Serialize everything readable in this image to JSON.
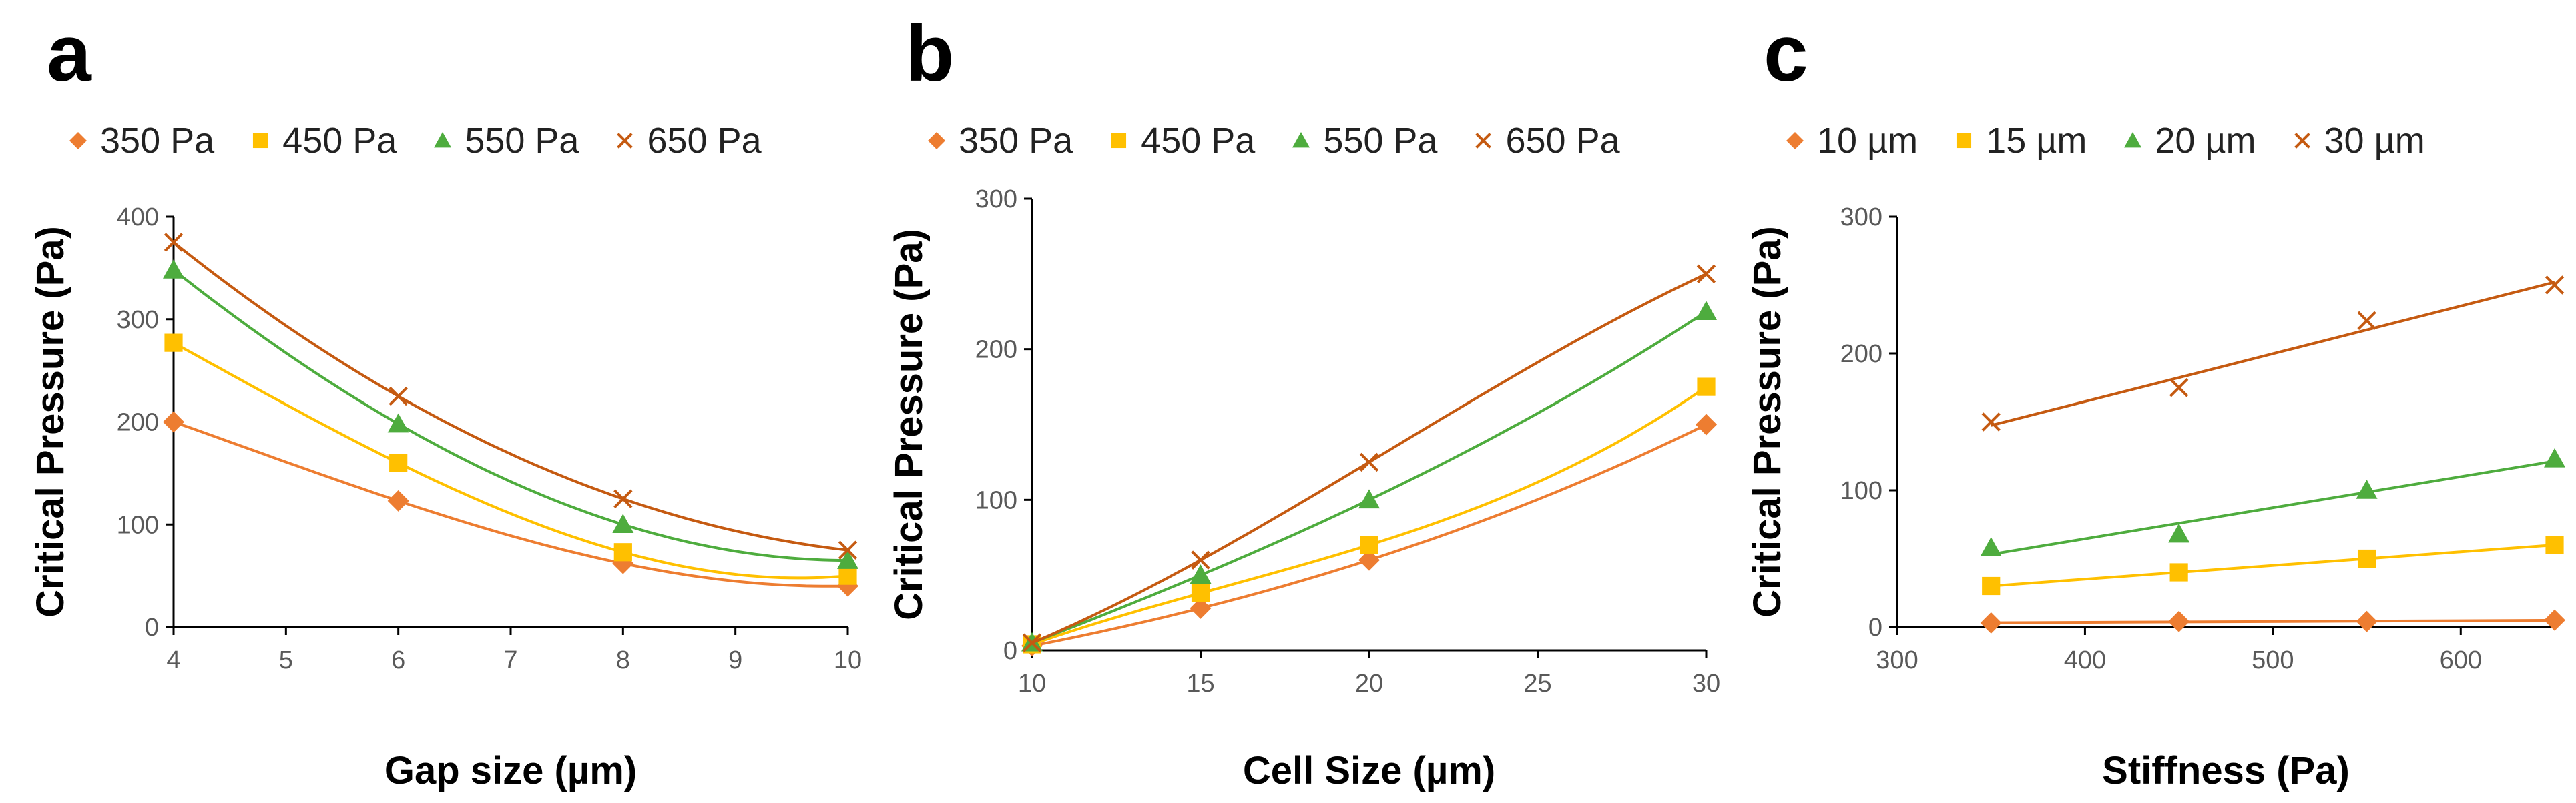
{
  "chart_data": [
    {
      "panel": "a",
      "type": "line",
      "xlabel": "Gap size (µm)",
      "ylabel": "Critical Pressure (Pa)",
      "xlim": [
        4,
        10
      ],
      "ylim": [
        0,
        400
      ],
      "xticks": [
        4,
        5,
        6,
        7,
        8,
        9,
        10
      ],
      "yticks": [
        0,
        100,
        200,
        300,
        400
      ],
      "legend": "top",
      "fit": "poly",
      "series": [
        {
          "name": "350 Pa",
          "color": "#ED7D31",
          "marker": "diamond",
          "x": [
            4,
            6,
            8,
            10
          ],
          "y": [
            200,
            123,
            62,
            40
          ]
        },
        {
          "name": "450 Pa",
          "color": "#FFC000",
          "marker": "square",
          "x": [
            4,
            6,
            8,
            10
          ],
          "y": [
            277,
            160,
            73,
            50
          ]
        },
        {
          "name": "550 Pa",
          "color": "#4EAC3E",
          "marker": "triangle",
          "x": [
            4,
            6,
            8,
            10
          ],
          "y": [
            348,
            198,
            100,
            65
          ]
        },
        {
          "name": "650 Pa",
          "color": "#C55A11",
          "marker": "x",
          "x": [
            4,
            6,
            8,
            10
          ],
          "y": [
            375,
            225,
            125,
            75
          ]
        }
      ]
    },
    {
      "panel": "b",
      "type": "line",
      "xlabel": "Cell Size (µm)",
      "ylabel": "Critical Pressure (Pa)",
      "xlim": [
        10,
        30
      ],
      "ylim": [
        0,
        300
      ],
      "xticks": [
        10,
        15,
        20,
        25,
        30
      ],
      "yticks": [
        0,
        100,
        200,
        300
      ],
      "legend": "top",
      "fit": "poly",
      "series": [
        {
          "name": "350 Pa",
          "color": "#ED7D31",
          "marker": "diamond",
          "x": [
            10,
            15,
            20,
            30
          ],
          "y": [
            3,
            28,
            60,
            150
          ]
        },
        {
          "name": "450 Pa",
          "color": "#FFC000",
          "marker": "square",
          "x": [
            10,
            15,
            20,
            30
          ],
          "y": [
            4,
            38,
            70,
            175
          ]
        },
        {
          "name": "550 Pa",
          "color": "#4EAC3E",
          "marker": "triangle",
          "x": [
            10,
            15,
            20,
            30
          ],
          "y": [
            5,
            50,
            100,
            225
          ]
        },
        {
          "name": "650 Pa",
          "color": "#C55A11",
          "marker": "x",
          "x": [
            10,
            15,
            20,
            30
          ],
          "y": [
            5,
            60,
            125,
            250
          ]
        }
      ]
    },
    {
      "panel": "c",
      "type": "scatter",
      "xlabel": "Stiffness (Pa)",
      "ylabel": "Critical Pressure (Pa)",
      "xlim": [
        300,
        650
      ],
      "ylim": [
        0,
        300
      ],
      "xticks": [
        300,
        400,
        500,
        600
      ],
      "yticks": [
        0,
        100,
        200,
        300
      ],
      "legend": "top",
      "fit": "linear",
      "series": [
        {
          "name": "10 µm",
          "color": "#ED7D31",
          "marker": "diamond",
          "x": [
            350,
            450,
            550,
            650
          ],
          "y": [
            3,
            4,
            4,
            5
          ]
        },
        {
          "name": "15 µm",
          "color": "#FFC000",
          "marker": "square",
          "x": [
            350,
            450,
            550,
            650
          ],
          "y": [
            30,
            40,
            50,
            60
          ]
        },
        {
          "name": "20 µm",
          "color": "#4EAC3E",
          "marker": "triangle",
          "x": [
            350,
            450,
            550,
            650
          ],
          "y": [
            58,
            68,
            100,
            123
          ]
        },
        {
          "name": "30 µm",
          "color": "#C55A11",
          "marker": "x",
          "x": [
            350,
            450,
            550,
            650
          ],
          "y": [
            150,
            175,
            224,
            250
          ]
        }
      ]
    }
  ]
}
